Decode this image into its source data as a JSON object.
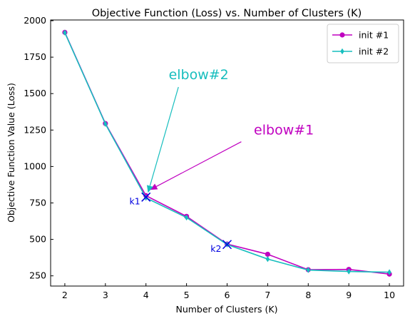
{
  "chart_data": {
    "type": "line",
    "title": "Objective Function (Loss) vs. Number of Clusters (K)",
    "xlabel": "Number of Clusters (K)",
    "ylabel": "Objective Function Value (Loss)",
    "x": [
      2,
      3,
      4,
      5,
      6,
      7,
      8,
      9,
      10
    ],
    "xlim": [
      1.65,
      10.35
    ],
    "ylim": [
      180,
      2005
    ],
    "xticks": [
      2,
      3,
      4,
      5,
      6,
      7,
      8,
      9,
      10
    ],
    "yticks": [
      250,
      500,
      750,
      1000,
      1250,
      1500,
      1750,
      2000
    ],
    "grid": false,
    "legend_position": "top-right",
    "series": [
      {
        "name": "init #1",
        "color": "#c000c0",
        "marker": "circle",
        "values": [
          1920,
          1295,
          800,
          658,
          468,
          398,
          292,
          294,
          262
        ]
      },
      {
        "name": "init #2",
        "color": "#17bebe",
        "marker": "diamond",
        "values": [
          1918,
          1292,
          785,
          650,
          465,
          365,
          290,
          280,
          275
        ]
      }
    ],
    "points": [
      {
        "label": "k1",
        "x": 4,
        "y": 790,
        "color": "#0000e0"
      },
      {
        "label": "k2",
        "x": 6,
        "y": 465,
        "color": "#0000e0"
      }
    ],
    "annotations": [
      {
        "text": "elbow#1",
        "color": "#c000c0",
        "text_x": 7.4,
        "text_y": 1220,
        "arrow_from": [
          6.35,
          1170
        ],
        "arrow_to": [
          4.1,
          840
        ]
      },
      {
        "text": "elbow#2",
        "color": "#17bebe",
        "text_x": 5.3,
        "text_y": 1600,
        "arrow_from": [
          4.8,
          1545
        ],
        "arrow_to": [
          4.05,
          820
        ]
      }
    ]
  }
}
